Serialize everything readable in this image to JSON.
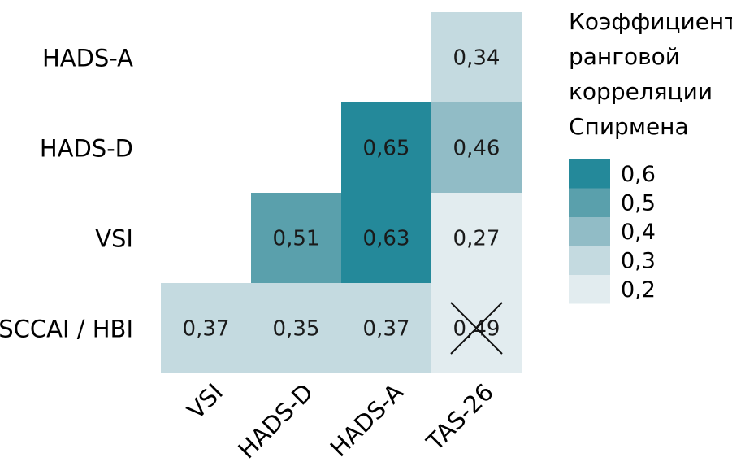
{
  "chart_data": {
    "type": "heatmap",
    "rows": [
      "HADS-A",
      "HADS-D",
      "VSI",
      "SCCAI / HBI"
    ],
    "columns": [
      "VSI",
      "HADS-D",
      "HADS-A",
      "TAS-26"
    ],
    "cells": [
      {
        "row": "HADS-A",
        "col": "TAS-26",
        "value": 0.34,
        "label": "0,34",
        "crossed": false
      },
      {
        "row": "HADS-D",
        "col": "HADS-A",
        "value": 0.65,
        "label": "0,65",
        "crossed": false
      },
      {
        "row": "HADS-D",
        "col": "TAS-26",
        "value": 0.46,
        "label": "0,46",
        "crossed": false
      },
      {
        "row": "VSI",
        "col": "HADS-D",
        "value": 0.51,
        "label": "0,51",
        "crossed": false
      },
      {
        "row": "VSI",
        "col": "HADS-A",
        "value": 0.63,
        "label": "0,63",
        "crossed": false
      },
      {
        "row": "VSI",
        "col": "TAS-26",
        "value": 0.27,
        "label": "0,27",
        "crossed": false
      },
      {
        "row": "SCCAI / HBI",
        "col": "VSI",
        "value": 0.37,
        "label": "0,37",
        "crossed": false
      },
      {
        "row": "SCCAI / HBI",
        "col": "HADS-D",
        "value": 0.35,
        "label": "0,35",
        "crossed": false
      },
      {
        "row": "SCCAI / HBI",
        "col": "HADS-A",
        "value": 0.37,
        "label": "0,37",
        "crossed": false
      },
      {
        "row": "SCCAI / HBI",
        "col": "TAS-26",
        "value": 0.49,
        "label": "0,49",
        "crossed": true,
        "display_color": "#e2ecef"
      }
    ],
    "legend": {
      "title_lines": [
        "Коэффициент",
        "ранговой",
        "корреляции",
        "Спирмена"
      ],
      "items": [
        {
          "label": "0,6",
          "color": "#24899a"
        },
        {
          "label": "0,5",
          "color": "#5aa0ac"
        },
        {
          "label": "0,4",
          "color": "#91bcc6"
        },
        {
          "label": "0,3",
          "color": "#c4dae0"
        },
        {
          "label": "0,2",
          "color": "#e2ecef"
        }
      ],
      "placement": "right"
    },
    "grid": false
  }
}
